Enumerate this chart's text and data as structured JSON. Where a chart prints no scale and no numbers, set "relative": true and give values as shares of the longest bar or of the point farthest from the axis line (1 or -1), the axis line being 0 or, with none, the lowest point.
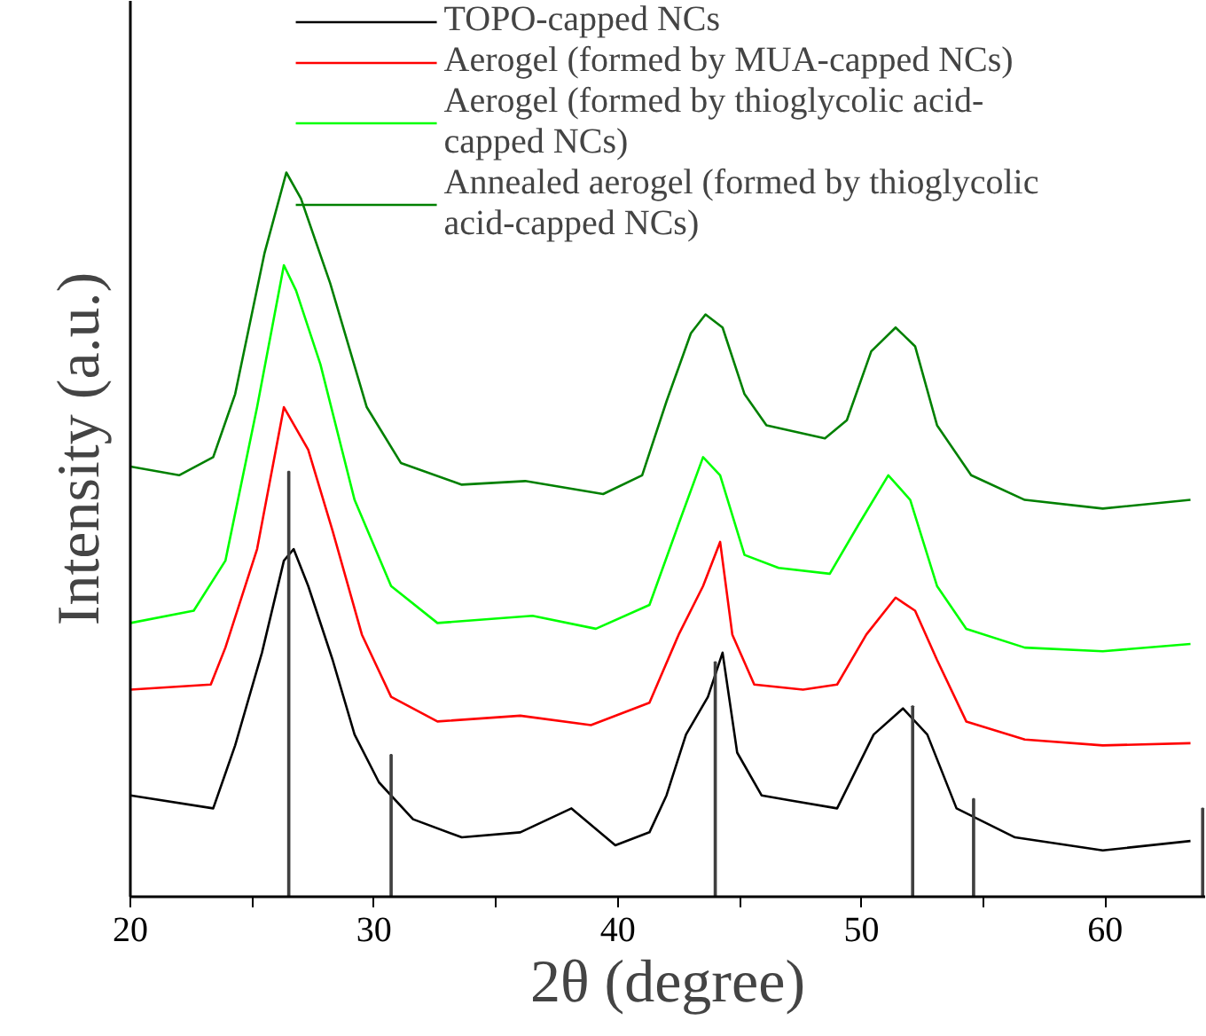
{
  "chart_data": {
    "type": "line",
    "relative": true,
    "xlabel": "2θ (degree)",
    "ylabel": "Intensity (a.u.)",
    "xlim": [
      20,
      64.1
    ],
    "xticks": [
      20,
      {
        "value": 25,
        "label": null
      },
      30,
      {
        "value": 35,
        "label": null
      },
      40,
      {
        "value": 45,
        "label": null
      },
      50,
      {
        "value": 55,
        "label": null
      },
      60
    ],
    "grid": false,
    "legend": "top",
    "marker": "none",
    "line_style": "solid",
    "series": [
      {
        "name": "TOPO-capped NCs",
        "color": "#000000",
        "x": [
          20,
          23.4,
          24.3,
          25.4,
          26.3,
          26.7,
          27.3,
          28.3,
          29.2,
          30.2,
          31.6,
          33.6,
          36,
          38.1,
          39.9,
          41.3,
          42,
          42.8,
          43.7,
          44.3,
          44.9,
          45.9,
          47.1,
          49,
          50.5,
          51.7,
          52.7,
          53.9,
          56.3,
          59.9,
          63.5
        ],
        "values": [
          0.14,
          0.122,
          0.209,
          0.337,
          0.464,
          0.48,
          0.429,
          0.327,
          0.224,
          0.158,
          0.107,
          0.082,
          0.089,
          0.122,
          0.071,
          0.089,
          0.14,
          0.224,
          0.276,
          0.337,
          0.199,
          0.14,
          0.133,
          0.122,
          0.224,
          0.26,
          0.224,
          0.122,
          0.082,
          0.064,
          0.077
        ]
      },
      {
        "name": "Aerogel (formed by MUA-capped NCs)",
        "color": "#ff0000",
        "x": [
          20,
          23.3,
          23.9,
          25.2,
          26.3,
          27.3,
          28.3,
          29.5,
          30.7,
          32.6,
          36,
          38.9,
          41.3,
          42.5,
          43.5,
          44.2,
          44.7,
          45.6,
          47.6,
          49,
          50.2,
          51.4,
          52.2,
          53.1,
          54.3,
          56.7,
          59.9,
          63.5
        ],
        "values": [
          0.286,
          0.293,
          0.344,
          0.48,
          0.676,
          0.617,
          0.505,
          0.362,
          0.276,
          0.242,
          0.25,
          0.237,
          0.268,
          0.362,
          0.429,
          0.49,
          0.362,
          0.293,
          0.286,
          0.293,
          0.362,
          0.413,
          0.395,
          0.327,
          0.242,
          0.217,
          0.209,
          0.212
        ]
      },
      {
        "name": "Aerogel (formed by thioglycolic acid-capped NCs)",
        "color": "#00ff00",
        "x": [
          20,
          22.6,
          23.9,
          25.2,
          26.3,
          26.8,
          27.8,
          29.2,
          30.7,
          32.6,
          36.5,
          39.1,
          41.3,
          42.5,
          43.5,
          44.2,
          45.2,
          46.6,
          48.7,
          49.9,
          51.1,
          52,
          53.1,
          54.3,
          56.7,
          59.9,
          63.5
        ],
        "values": [
          0.378,
          0.395,
          0.464,
          0.676,
          0.872,
          0.837,
          0.735,
          0.548,
          0.429,
          0.378,
          0.388,
          0.37,
          0.403,
          0.515,
          0.607,
          0.582,
          0.472,
          0.454,
          0.446,
          0.515,
          0.582,
          0.548,
          0.429,
          0.37,
          0.344,
          0.339,
          0.349
        ]
      },
      {
        "name": "Annealed aerogel (formed by thioglycolic acid-capped NCs)",
        "color": "#008000",
        "x": [
          20,
          22,
          23.4,
          24.3,
          25.5,
          26.4,
          27,
          28.2,
          29.7,
          31.1,
          33.6,
          36.2,
          39.4,
          41,
          42,
          43,
          43.6,
          44.3,
          45.2,
          46.1,
          48.5,
          49.4,
          50.4,
          51.4,
          52.2,
          53.1,
          54.5,
          56.7,
          59.9,
          63.5
        ],
        "values": [
          0.594,
          0.582,
          0.607,
          0.694,
          0.888,
          1,
          0.964,
          0.847,
          0.676,
          0.599,
          0.569,
          0.574,
          0.556,
          0.582,
          0.684,
          0.778,
          0.804,
          0.786,
          0.694,
          0.651,
          0.633,
          0.658,
          0.753,
          0.786,
          0.76,
          0.651,
          0.582,
          0.548,
          0.536,
          0.548
        ]
      },
      {
        "type": "bar",
        "color": "#404040",
        "x": [
          26.5,
          30.7,
          44,
          52.1,
          54.6,
          64
        ],
        "values": [
          0.587,
          0.196,
          0.324,
          0.263,
          0.135,
          0.122
        ]
      }
    ]
  }
}
